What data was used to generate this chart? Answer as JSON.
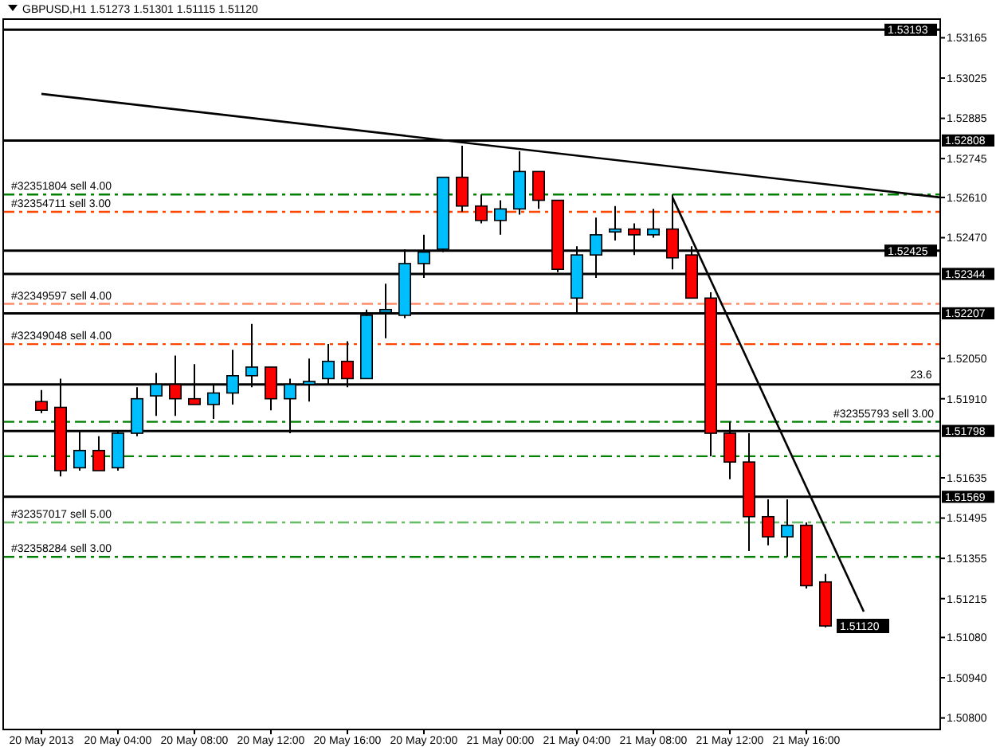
{
  "chart_data": {
    "type": "candlestick",
    "title": "GBPUSD,H1  1.51273 1.51301 1.51115 1.51120",
    "x": [
      "2013-05-20T00:00",
      "2013-05-20T01:00",
      "2013-05-20T02:00",
      "2013-05-20T03:00",
      "2013-05-20T04:00",
      "2013-05-20T05:00",
      "2013-05-20T06:00",
      "2013-05-20T07:00",
      "2013-05-20T08:00",
      "2013-05-20T09:00",
      "2013-05-20T10:00",
      "2013-05-20T11:00",
      "2013-05-20T12:00",
      "2013-05-20T13:00",
      "2013-05-20T14:00",
      "2013-05-20T15:00",
      "2013-05-20T16:00",
      "2013-05-20T17:00",
      "2013-05-20T18:00",
      "2013-05-20T19:00",
      "2013-05-20T20:00",
      "2013-05-20T21:00",
      "2013-05-20T22:00",
      "2013-05-20T23:00",
      "2013-05-21T00:00",
      "2013-05-21T01:00",
      "2013-05-21T02:00",
      "2013-05-21T03:00",
      "2013-05-21T04:00",
      "2013-05-21T05:00",
      "2013-05-21T06:00",
      "2013-05-21T07:00",
      "2013-05-21T08:00",
      "2013-05-21T09:00",
      "2013-05-21T10:00",
      "2013-05-21T11:00",
      "2013-05-21T12:00",
      "2013-05-21T13:00",
      "2013-05-21T14:00",
      "2013-05-21T15:00",
      "2013-05-21T16:00",
      "2013-05-21T17:00"
    ],
    "ohlc": [
      [
        1.519,
        1.5194,
        1.5186,
        1.5187
      ],
      [
        1.5188,
        1.5198,
        1.5164,
        1.5166
      ],
      [
        1.5167,
        1.518,
        1.5166,
        1.5173
      ],
      [
        1.5173,
        1.5178,
        1.5166,
        1.5166
      ],
      [
        1.5167,
        1.518,
        1.5166,
        1.5179
      ],
      [
        1.5179,
        1.5195,
        1.5178,
        1.5191
      ],
      [
        1.5192,
        1.52,
        1.5185,
        1.5196
      ],
      [
        1.5196,
        1.5206,
        1.5185,
        1.5191
      ],
      [
        1.5191,
        1.5203,
        1.5189,
        1.5189
      ],
      [
        1.5189,
        1.5196,
        1.5184,
        1.5193
      ],
      [
        1.5193,
        1.5208,
        1.5189,
        1.5199
      ],
      [
        1.5199,
        1.5217,
        1.5195,
        1.5202
      ],
      [
        1.5202,
        1.5202,
        1.5187,
        1.5191
      ],
      [
        1.5191,
        1.5198,
        1.5179,
        1.5196
      ],
      [
        1.5196,
        1.5205,
        1.519,
        1.5197
      ],
      [
        1.5198,
        1.521,
        1.5196,
        1.5204
      ],
      [
        1.5204,
        1.5211,
        1.5195,
        1.5198
      ],
      [
        1.5198,
        1.5222,
        1.5198,
        1.522
      ],
      [
        1.5221,
        1.5231,
        1.5212,
        1.5222
      ],
      [
        1.522,
        1.5243,
        1.5219,
        1.5238
      ],
      [
        1.5238,
        1.5248,
        1.5233,
        1.5242
      ],
      [
        1.5243,
        1.5268,
        1.5242,
        1.5268
      ],
      [
        1.5268,
        1.5279,
        1.5256,
        1.5258
      ],
      [
        1.5258,
        1.5262,
        1.5252,
        1.5253
      ],
      [
        1.5253,
        1.526,
        1.5248,
        1.5257
      ],
      [
        1.5257,
        1.5277,
        1.5255,
        1.527
      ],
      [
        1.527,
        1.527,
        1.5257,
        1.526
      ],
      [
        1.526,
        1.526,
        1.5235,
        1.5236
      ],
      [
        1.5226,
        1.5244,
        1.5221,
        1.5241
      ],
      [
        1.5241,
        1.5254,
        1.5233,
        1.5248
      ],
      [
        1.5249,
        1.5258,
        1.5246,
        1.525
      ],
      [
        1.525,
        1.5252,
        1.5241,
        1.5248
      ],
      [
        1.5248,
        1.5257,
        1.5247,
        1.525
      ],
      [
        1.525,
        1.5262,
        1.5236,
        1.524
      ],
      [
        1.5241,
        1.5244,
        1.5226,
        1.5226
      ],
      [
        1.5226,
        1.5228,
        1.5171,
        1.5179
      ],
      [
        1.5179,
        1.5183,
        1.5163,
        1.5169
      ],
      [
        1.5169,
        1.5179,
        1.5138,
        1.515
      ],
      [
        1.515,
        1.5156,
        1.514,
        1.5143
      ],
      [
        1.5143,
        1.5156,
        1.5136,
        1.5147
      ],
      [
        1.5147,
        1.5148,
        1.5125,
        1.5126
      ],
      [
        1.51273,
        1.51301,
        1.51115,
        1.5112
      ]
    ],
    "colors": [
      "#ff0000",
      "#ff0000",
      "#00bfff",
      "#ff0000",
      "#00bfff",
      "#00bfff",
      "#00bfff",
      "#ff0000",
      "#ff0000",
      "#00bfff",
      "#00bfff",
      "#00bfff",
      "#ff0000",
      "#00bfff",
      "#00bfff",
      "#00bfff",
      "#ff0000",
      "#00bfff",
      "#00bfff",
      "#00bfff",
      "#00bfff",
      "#00bfff",
      "#ff0000",
      "#ff0000",
      "#00bfff",
      "#00bfff",
      "#ff0000",
      "#ff0000",
      "#00bfff",
      "#00bfff",
      "#00bfff",
      "#ff0000",
      "#00bfff",
      "#ff0000",
      "#ff0000",
      "#ff0000",
      "#ff0000",
      "#ff0000",
      "#ff0000",
      "#00bfff",
      "#ff0000",
      "#ff0000"
    ],
    "series": [
      {
        "type": "line",
        "color": "#000000",
        "x": [
          "2013-05-20T00:00",
          "2013-05-21T23:00"
        ],
        "values": [
          1.5297,
          1.5261
        ]
      },
      {
        "type": "line",
        "color": "#000000",
        "x": [
          "2013-05-21T09:00",
          "2013-05-21T19:00"
        ],
        "values": [
          1.5261,
          1.5117
        ]
      }
    ],
    "xlim": [
      "2013-05-19T22:00",
      "2013-05-21T23:00"
    ],
    "xticks": [
      {
        "value": "2013-05-20T00:00",
        "label": "20 May 2013"
      },
      {
        "value": "2013-05-20T04:00",
        "label": "20 May 04:00"
      },
      {
        "value": "2013-05-20T08:00",
        "label": "20 May 08:00"
      },
      {
        "value": "2013-05-20T12:00",
        "label": "20 May 12:00"
      },
      {
        "value": "2013-05-20T16:00",
        "label": "20 May 16:00"
      },
      {
        "value": "2013-05-20T20:00",
        "label": "20 May 20:00"
      },
      {
        "value": "2013-05-21T00:00",
        "label": "21 May 00:00"
      },
      {
        "value": "2013-05-21T04:00",
        "label": "21 May 04:00"
      },
      {
        "value": "2013-05-21T08:00",
        "label": "21 May 08:00"
      },
      {
        "value": "2013-05-21T12:00",
        "label": "21 May 12:00"
      },
      {
        "value": "2013-05-21T16:00",
        "label": "21 May 16:00"
      }
    ],
    "ylim": [
      1.5076,
      1.5323
    ],
    "yticks": [
      {
        "value": 1.53165,
        "label": "1.53165"
      },
      {
        "value": 1.53025,
        "label": "1.53025"
      },
      {
        "value": 1.52885,
        "label": "1.52885"
      },
      {
        "value": 1.52745,
        "label": "1.52745"
      },
      {
        "value": 1.5261,
        "label": "1.52610"
      },
      {
        "value": 1.5247,
        "label": "1.52470"
      },
      {
        "value": 1.5205,
        "label": "1.52050"
      },
      {
        "value": 1.5191,
        "label": "1.51910"
      },
      {
        "value": 1.51635,
        "label": "1.51635"
      },
      {
        "value": 1.51495,
        "label": "1.51495"
      },
      {
        "value": 1.51355,
        "label": "1.51355"
      },
      {
        "value": 1.51215,
        "label": "1.51215"
      },
      {
        "value": 1.5108,
        "label": "1.51080"
      },
      {
        "value": 1.5094,
        "label": "1.50940"
      },
      {
        "value": 1.508,
        "label": "1.50800"
      }
    ],
    "ref_lines": [
      {
        "axis": "y",
        "value": 1.53193,
        "label": "1.53193",
        "color": "#000000",
        "line_style": "solid"
      },
      {
        "axis": "y",
        "value": 1.52808,
        "label": "1.52808",
        "color": "#000000",
        "line_style": "solid"
      },
      {
        "axis": "y",
        "value": 1.52425,
        "label": "1.52425",
        "color": "#000000",
        "line_style": "solid"
      },
      {
        "axis": "y",
        "value": 1.52344,
        "label": "1.52344",
        "color": "#000000",
        "line_style": "solid"
      },
      {
        "axis": "y",
        "value": 1.52207,
        "label": "1.52207",
        "color": "#000000",
        "line_style": "solid"
      },
      {
        "axis": "y",
        "value": 1.51798,
        "label": "1.51798",
        "color": "#000000",
        "line_style": "solid"
      },
      {
        "axis": "y",
        "value": 1.51569,
        "label": "1.51569",
        "color": "#000000",
        "line_style": "solid"
      },
      {
        "axis": "y",
        "value": 1.5196,
        "color": "#000000",
        "line_style": "solid"
      },
      {
        "axis": "y",
        "value": 1.5262,
        "label": "#32351804 sell 4.00",
        "color": "#008000",
        "line_style": "dashed"
      },
      {
        "axis": "y",
        "value": 1.5256,
        "label": "#32354711 sell 3.00",
        "color": "#ff4500",
        "line_style": "dashed"
      },
      {
        "axis": "y",
        "value": 1.5224,
        "label": "#32349597 sell 4.00",
        "color": "#ff8c69",
        "line_style": "dashed"
      },
      {
        "axis": "y",
        "value": 1.521,
        "label": "#32349048 sell 4.00",
        "color": "#ff4500",
        "line_style": "dashed"
      },
      {
        "axis": "y",
        "value": 1.5183,
        "label": "#32355793 sell 3.00",
        "color": "#008000",
        "line_style": "dashed"
      },
      {
        "axis": "y",
        "value": 1.5171,
        "color": "#008000",
        "line_style": "dashed"
      },
      {
        "axis": "y",
        "value": 1.5148,
        "label": "#32357017 sell 5.00",
        "color": "#66bb66",
        "line_style": "dashed"
      },
      {
        "axis": "y",
        "value": 1.5136,
        "label": "#32358284 sell 3.00",
        "color": "#008000",
        "line_style": "dashed"
      }
    ],
    "annotations": [
      {
        "text": "23.6",
        "x": "2013-05-21T22:00",
        "y": 1.5197
      },
      {
        "text": "1.51120",
        "x": "2013-05-21T17:00",
        "y": 1.5112
      }
    ]
  }
}
